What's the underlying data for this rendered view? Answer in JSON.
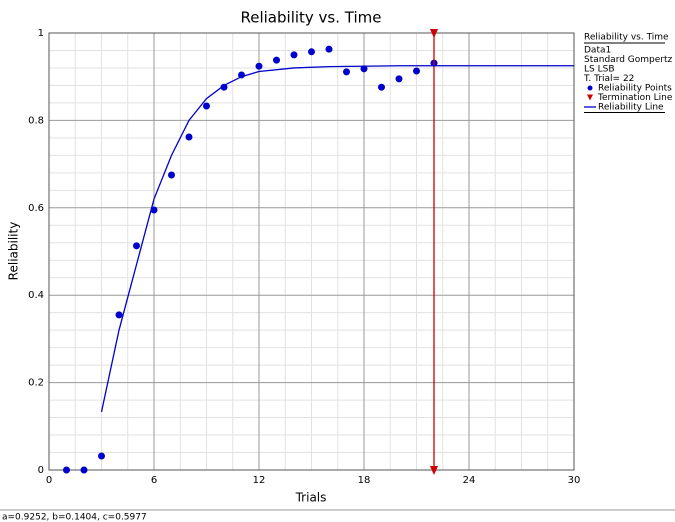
{
  "chart_data": {
    "type": "scatter",
    "title": "Reliability vs. Time",
    "xlabel": "Trials",
    "ylabel": "Reliability",
    "xlim": [
      0,
      30
    ],
    "ylim": [
      0,
      1
    ],
    "xticks": [
      0,
      6,
      12,
      18,
      24,
      30
    ],
    "yticks": [
      0,
      0.2,
      0.4,
      0.6,
      0.8,
      1
    ],
    "grid": true,
    "legend": {
      "title": "Reliability vs. Time",
      "lines": [
        "Data1",
        "Standard Gompertz",
        "LS LSB",
        "T. Trial= 22"
      ]
    },
    "series": [
      {
        "name": "Reliability Points",
        "type": "scatter",
        "color": "#0000cc",
        "x": [
          1,
          2,
          3,
          4,
          5,
          6,
          7,
          8,
          9,
          10,
          11,
          12,
          13,
          14,
          15,
          16,
          17,
          18,
          19,
          20,
          21,
          22
        ],
        "values": [
          0,
          0,
          0.032,
          0.355,
          0.513,
          0.595,
          0.675,
          0.762,
          0.833,
          0.876,
          0.904,
          0.924,
          0.938,
          0.95,
          0.957,
          0.963,
          0.911,
          0.918,
          0.876,
          0.895,
          0.913,
          0.931
        ]
      },
      {
        "name": "Termination Line",
        "type": "vline",
        "color": "#cc0000",
        "x": 22
      },
      {
        "name": "Reliability Line",
        "type": "line",
        "color": "#0000cc",
        "x": [
          3,
          4,
          5,
          6,
          7,
          8,
          9,
          10,
          11,
          12,
          14,
          16,
          20,
          25,
          30
        ],
        "values": [
          0.133,
          0.32,
          0.47,
          0.62,
          0.72,
          0.8,
          0.85,
          0.88,
          0.9,
          0.912,
          0.92,
          0.923,
          0.925,
          0.925,
          0.925
        ]
      }
    ],
    "status_bar": "a=0.9252, b=0.1404, c=0.5977"
  }
}
